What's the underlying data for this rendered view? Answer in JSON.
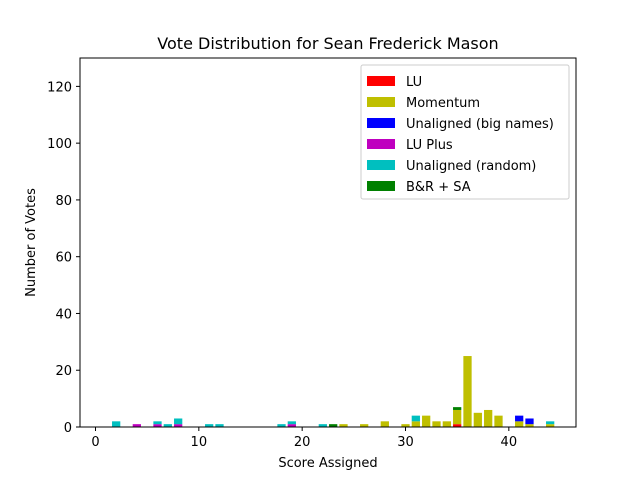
{
  "chart_data": {
    "type": "bar",
    "stacked": true,
    "title": "Vote Distribution for Sean Frederick Mason",
    "xlabel": "Score Assigned",
    "ylabel": "Number of Votes",
    "xlim": [
      -1.5,
      46.5
    ],
    "ylim": [
      0,
      130
    ],
    "xticks": [
      0,
      10,
      20,
      30,
      40
    ],
    "yticks": [
      0,
      20,
      40,
      60,
      80,
      100,
      120
    ],
    "grid": false,
    "legend_position": "top-right",
    "x": [
      2,
      4,
      6,
      7,
      8,
      11,
      12,
      18,
      19,
      22,
      23,
      24,
      26,
      28,
      30,
      31,
      32,
      33,
      34,
      35,
      36,
      37,
      38,
      39,
      41,
      42,
      44
    ],
    "series": [
      {
        "name": "LU",
        "color": "#ff0000",
        "values": [
          0,
          0,
          0,
          0,
          0,
          0,
          0,
          0,
          0,
          0,
          0,
          0,
          0,
          0,
          0,
          0,
          0,
          0,
          0,
          1,
          0,
          0,
          0,
          0,
          0,
          0,
          0
        ]
      },
      {
        "name": "Momentum",
        "color": "#bfbf00",
        "values": [
          0,
          0,
          0,
          0,
          0,
          0,
          0,
          0,
          0,
          0,
          0,
          1,
          1,
          2,
          1,
          2,
          4,
          2,
          2,
          5,
          25,
          5,
          6,
          4,
          2,
          1,
          1
        ]
      },
      {
        "name": "Unaligned (big names)",
        "color": "#0000ff",
        "values": [
          0,
          0,
          0,
          0,
          0,
          0,
          0,
          0,
          0,
          0,
          0,
          0,
          0,
          0,
          0,
          0,
          0,
          0,
          0,
          0,
          0,
          0,
          0,
          0,
          2,
          2,
          0
        ]
      },
      {
        "name": "LU Plus",
        "color": "#bf00bf",
        "values": [
          0,
          1,
          1,
          0,
          1,
          0,
          0,
          0,
          1,
          0,
          0,
          0,
          0,
          0,
          0,
          0,
          0,
          0,
          0,
          0,
          0,
          0,
          0,
          0,
          0,
          0,
          0
        ]
      },
      {
        "name": "Unaligned (random)",
        "color": "#00bfbf",
        "values": [
          2,
          0,
          1,
          1,
          2,
          1,
          1,
          1,
          1,
          1,
          0,
          0,
          0,
          0,
          0,
          2,
          0,
          0,
          0,
          0,
          0,
          0,
          0,
          0,
          0,
          0,
          1
        ]
      },
      {
        "name": "B&R + SA",
        "color": "#008000",
        "values": [
          0,
          0,
          0,
          0,
          0,
          0,
          0,
          0,
          0,
          0,
          1,
          0,
          0,
          0,
          0,
          0,
          0,
          0,
          0,
          1,
          0,
          0,
          0,
          0,
          0,
          0,
          0
        ]
      }
    ]
  }
}
